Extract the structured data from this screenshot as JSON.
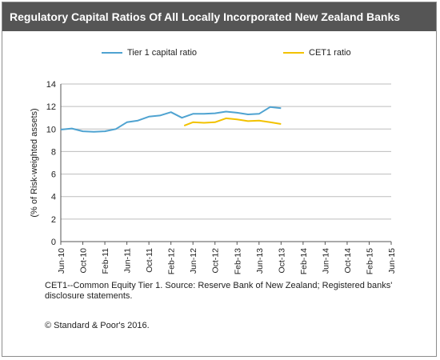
{
  "title": "Regulatory Capital Ratios Of All Locally Incorporated New Zealand Banks",
  "footnote": "CET1--Common Equity Tier 1. Source: Reserve Bank of New Zealand; Registered banks' disclosure statements.",
  "copyright": "© Standard & Poor's 2016.",
  "chart_data": {
    "type": "line",
    "title": "",
    "xlabel": "",
    "ylabel": "(% of Risk-weighted assets)",
    "ylim": [
      0,
      14
    ],
    "yticks": [
      0,
      2,
      4,
      6,
      8,
      10,
      12,
      14
    ],
    "grid": true,
    "legend_position": "top",
    "x": [
      "Jun-10",
      "Oct-10",
      "Feb-11",
      "Jun-11",
      "Oct-11",
      "Feb-12",
      "Jun-12",
      "Oct-12",
      "Feb-13",
      "Jun-13",
      "Oct-13",
      "Feb-14",
      "Jun-14",
      "Oct-14",
      "Feb-15",
      "Jun-15"
    ],
    "series": [
      {
        "name": "Tier 1 capital ratio",
        "color": "#4fa3d1",
        "points": [
          [
            0,
            9.95
          ],
          [
            0.5,
            10.05
          ],
          [
            1,
            9.8
          ],
          [
            1.5,
            9.75
          ],
          [
            2,
            9.8
          ],
          [
            2.5,
            10.0
          ],
          [
            3,
            10.6
          ],
          [
            3.5,
            10.75
          ],
          [
            4,
            11.1
          ],
          [
            4.5,
            11.2
          ],
          [
            5,
            11.5
          ],
          [
            5.5,
            11.0
          ],
          [
            6,
            11.35
          ],
          [
            6.5,
            11.35
          ],
          [
            7,
            11.4
          ],
          [
            7.5,
            11.55
          ],
          [
            8,
            11.45
          ],
          [
            8.5,
            11.3
          ],
          [
            9,
            11.35
          ],
          [
            9.5,
            11.95
          ],
          [
            10,
            11.85
          ]
        ]
      },
      {
        "name": "CET1 ratio",
        "color": "#f2c200",
        "points": [
          [
            5.6,
            10.3
          ],
          [
            6,
            10.6
          ],
          [
            6.5,
            10.55
          ],
          [
            7,
            10.6
          ],
          [
            7.5,
            10.95
          ],
          [
            8,
            10.85
          ],
          [
            8.5,
            10.7
          ],
          [
            9,
            10.75
          ],
          [
            9.5,
            10.6
          ],
          [
            10,
            10.45
          ]
        ]
      }
    ]
  }
}
